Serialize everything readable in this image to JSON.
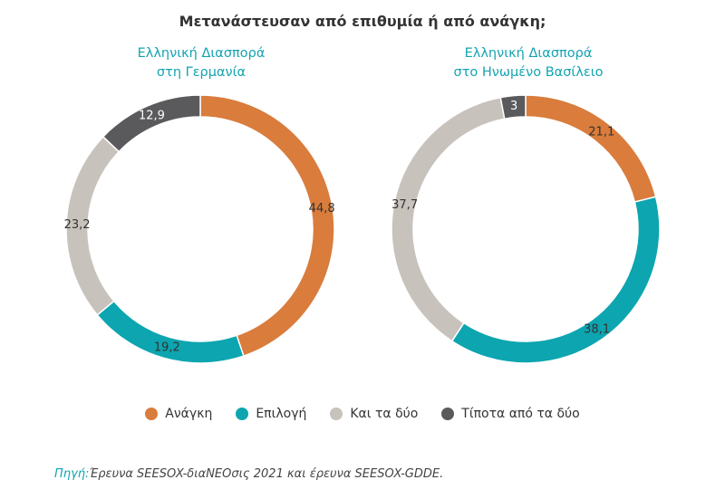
{
  "chart_data": {
    "type": "pie",
    "title": "Μετανάστευσαν από επιθυμία ή από ανάγκη;",
    "legend": [
      {
        "label": "Ανάγκη",
        "color": "#d97c3c"
      },
      {
        "label": "Επιλογή",
        "color": "#0ca5b0"
      },
      {
        "label": "Και τα δύο",
        "color": "#c8c2bc"
      },
      {
        "label": "Τίποτα από τα δύο",
        "color": "#5a5a5c"
      }
    ],
    "charts": [
      {
        "subtitle_line1": "Ελληνική Διασπορά",
        "subtitle_line2": "στη Γερμανία",
        "values": [
          44.8,
          19.2,
          23.2,
          12.9
        ],
        "labels": [
          "44,8",
          "19,2",
          "23,2",
          "12,9"
        ]
      },
      {
        "subtitle_line1": "Ελληνική Διασπορά",
        "subtitle_line2": "στο Ηνωμένο Βασίλειο",
        "values": [
          21.1,
          38.1,
          37.7,
          3
        ],
        "labels": [
          "21,1",
          "38,1",
          "37,7",
          "3"
        ]
      }
    ]
  },
  "source": {
    "label": "Πηγή:",
    "text": "Έρευνα SEESOX-διαNEOσις 2021 και έρευνα SEESOX-GDDE."
  }
}
